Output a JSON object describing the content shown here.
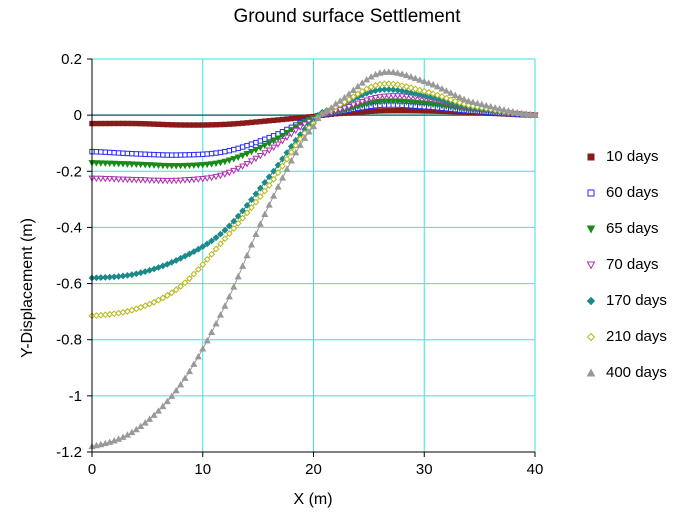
{
  "chart_data": {
    "type": "scatter",
    "title": "Ground surface Settlement",
    "xlabel": "X (m)",
    "ylabel": "Y-Displacement (m)",
    "xlim": [
      0,
      40
    ],
    "ylim": [
      -1.2,
      0.2
    ],
    "x_ticks": [
      0,
      10,
      20,
      30,
      40
    ],
    "y_ticks": [
      0.2,
      0,
      -0.2,
      -0.4,
      -0.6,
      -0.8,
      -1,
      -1.2
    ],
    "x_tick_labels": [
      "0",
      "10",
      "20",
      "30",
      "40"
    ],
    "y_tick_labels": [
      "0.2",
      "0",
      "-0.2",
      "-0.4",
      "-0.6",
      "-0.8",
      "-1",
      "-1.2"
    ],
    "grid": true,
    "legend_position": "right",
    "x": [
      0,
      4,
      8,
      12,
      16,
      20,
      22,
      26,
      30,
      34,
      40
    ],
    "series": [
      {
        "name": "10 days",
        "color": "#8b1a1a",
        "marker": "square-filled",
        "values": [
          -0.03,
          -0.03,
          -0.035,
          -0.033,
          -0.02,
          -0.005,
          0.005,
          0.015,
          0.015,
          0.01,
          0.0
        ]
      },
      {
        "name": "60 days",
        "color": "#2a2aff",
        "marker": "square-open",
        "values": [
          -0.13,
          -0.138,
          -0.142,
          -0.13,
          -0.08,
          -0.01,
          0.01,
          0.035,
          0.03,
          0.015,
          0.0
        ]
      },
      {
        "name": "65 days",
        "color": "#1a8a1a",
        "marker": "triangle-down-filled",
        "values": [
          -0.17,
          -0.175,
          -0.18,
          -0.165,
          -0.1,
          -0.01,
          0.01,
          0.048,
          0.042,
          0.02,
          0.0
        ]
      },
      {
        "name": "70 days",
        "color": "#b030b0",
        "marker": "triangle-down-open",
        "values": [
          -0.225,
          -0.23,
          -0.232,
          -0.21,
          -0.125,
          -0.015,
          0.015,
          0.065,
          0.06,
          0.025,
          0.0
        ]
      },
      {
        "name": "170 days",
        "color": "#1a8a8a",
        "marker": "diamond-filled",
        "values": [
          -0.58,
          -0.565,
          -0.51,
          -0.41,
          -0.22,
          -0.02,
          0.03,
          0.09,
          0.07,
          0.03,
          0.0
        ]
      },
      {
        "name": "210 days",
        "color": "#b8b81a",
        "marker": "diamond-open",
        "values": [
          -0.715,
          -0.69,
          -0.61,
          -0.44,
          -0.25,
          -0.03,
          0.03,
          0.11,
          0.085,
          0.035,
          0.0
        ]
      },
      {
        "name": "400 days",
        "color": "#999999",
        "marker": "triangle-up-filled",
        "values": [
          -1.18,
          -1.12,
          -0.96,
          -0.68,
          -0.32,
          -0.04,
          0.04,
          0.15,
          0.12,
          0.05,
          0.0
        ]
      }
    ]
  }
}
